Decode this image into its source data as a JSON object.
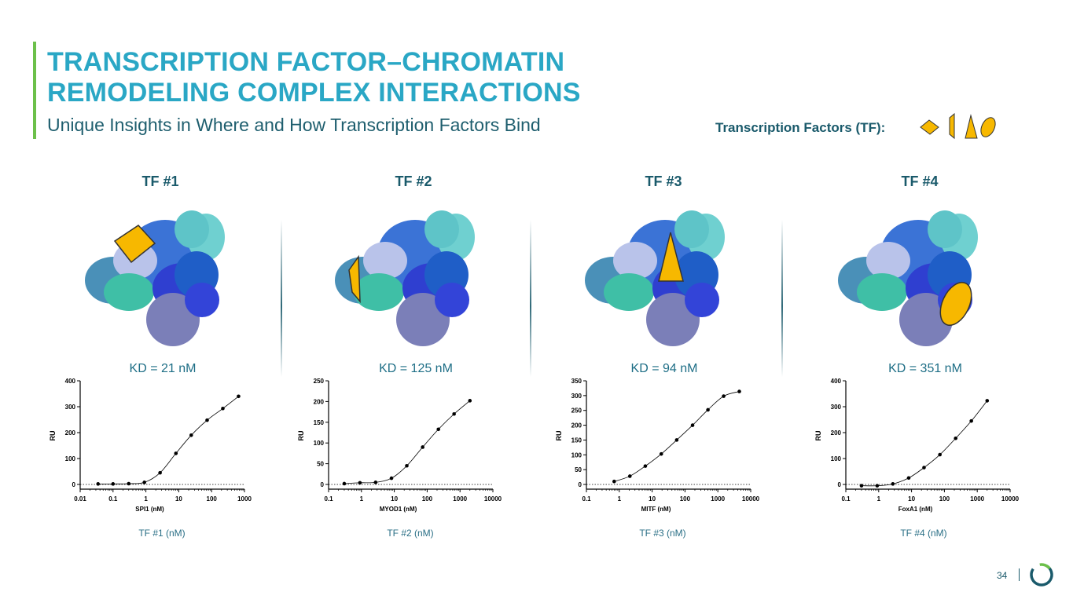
{
  "header": {
    "title_line1": "TRANSCRIPTION FACTOR–CHROMATIN",
    "title_line2": "REMODELING COMPLEX INTERACTIONS",
    "subtitle": "Unique Insights in Where and How Transcription Factors Bind",
    "legend_label": "Transcription Factors (TF):",
    "legend_icons": [
      "diamond-icon",
      "half-wedge-icon",
      "triangle-icon",
      "ellipse-icon"
    ]
  },
  "colors": {
    "accent_green": "#6cc04a",
    "title_blue": "#2aa7c5",
    "tf_yellow": "#f7b800",
    "dark_teal": "#1a5a6b"
  },
  "panels": [
    {
      "label": "TF #1",
      "kd": "KD = 21 nM",
      "caption": "TF #1 (nM)",
      "marker": "diamond-icon"
    },
    {
      "label": "TF #2",
      "kd": "KD = 125 nM",
      "caption": "TF #2 (nM)",
      "marker": "half-wedge-icon"
    },
    {
      "label": "TF #3",
      "kd": "KD = 94 nM",
      "caption": "TF #3 (nM)",
      "marker": "triangle-icon"
    },
    {
      "label": "TF #4",
      "kd": "KD = 351 nM",
      "caption": "TF #4 (nM)",
      "marker": "ellipse-icon"
    }
  ],
  "chart_data": [
    {
      "type": "scatter",
      "xscale": "log",
      "xlabel": "SPI1 (nM)",
      "ylabel": "RU",
      "xlim": [
        0.01,
        1000
      ],
      "ylim": [
        0,
        400
      ],
      "xticks": [
        "0.01",
        "0.1",
        "1",
        "10",
        "100",
        "1000"
      ],
      "yticks": [
        0,
        100,
        200,
        300,
        400
      ],
      "x": [
        0.035,
        0.1,
        0.3,
        0.9,
        2.7,
        8.2,
        24,
        73,
        220,
        660
      ],
      "y": [
        2,
        2,
        3,
        8,
        45,
        120,
        190,
        248,
        293,
        340
      ]
    },
    {
      "type": "scatter",
      "xscale": "log",
      "xlabel": "MYOD1 (nM)",
      "ylabel": "RU",
      "xlim": [
        0.1,
        10000
      ],
      "ylim": [
        0,
        250
      ],
      "xticks": [
        "0.1",
        "1",
        "10",
        "100",
        "1000",
        "10000"
      ],
      "yticks": [
        0,
        50,
        100,
        150,
        200,
        250
      ],
      "x": [
        0.3,
        0.9,
        2.7,
        8.2,
        24,
        73,
        220,
        660,
        2000
      ],
      "y": [
        2,
        4,
        5,
        15,
        45,
        90,
        133,
        170,
        202
      ]
    },
    {
      "type": "scatter",
      "xscale": "log",
      "xlabel": "MITF (nM)",
      "ylabel": "RU",
      "xlim": [
        0.1,
        10000
      ],
      "ylim": [
        0,
        350
      ],
      "xticks": [
        "0.1",
        "1",
        "10",
        "100",
        "1000",
        "10000"
      ],
      "yticks": [
        0,
        50,
        100,
        150,
        200,
        250,
        300,
        350
      ],
      "x": [
        0.7,
        2.1,
        6.2,
        19,
        56,
        170,
        500,
        1500,
        4500
      ],
      "y": [
        10,
        28,
        62,
        103,
        150,
        200,
        252,
        298,
        314
      ]
    },
    {
      "type": "scatter",
      "xscale": "log",
      "xlabel": "FoxA1 (nM)",
      "ylabel": "RU",
      "xlim": [
        0.1,
        10000
      ],
      "ylim": [
        0,
        400
      ],
      "xticks": [
        "0.1",
        "1",
        "10",
        "100",
        "1000",
        "10000"
      ],
      "yticks": [
        0,
        100,
        200,
        300,
        400
      ],
      "x": [
        0.3,
        0.9,
        2.7,
        8.2,
        24,
        73,
        220,
        660,
        2000
      ],
      "y": [
        -5,
        -5,
        2,
        25,
        65,
        115,
        178,
        245,
        323
      ]
    }
  ],
  "footer": {
    "page_number": "34"
  }
}
